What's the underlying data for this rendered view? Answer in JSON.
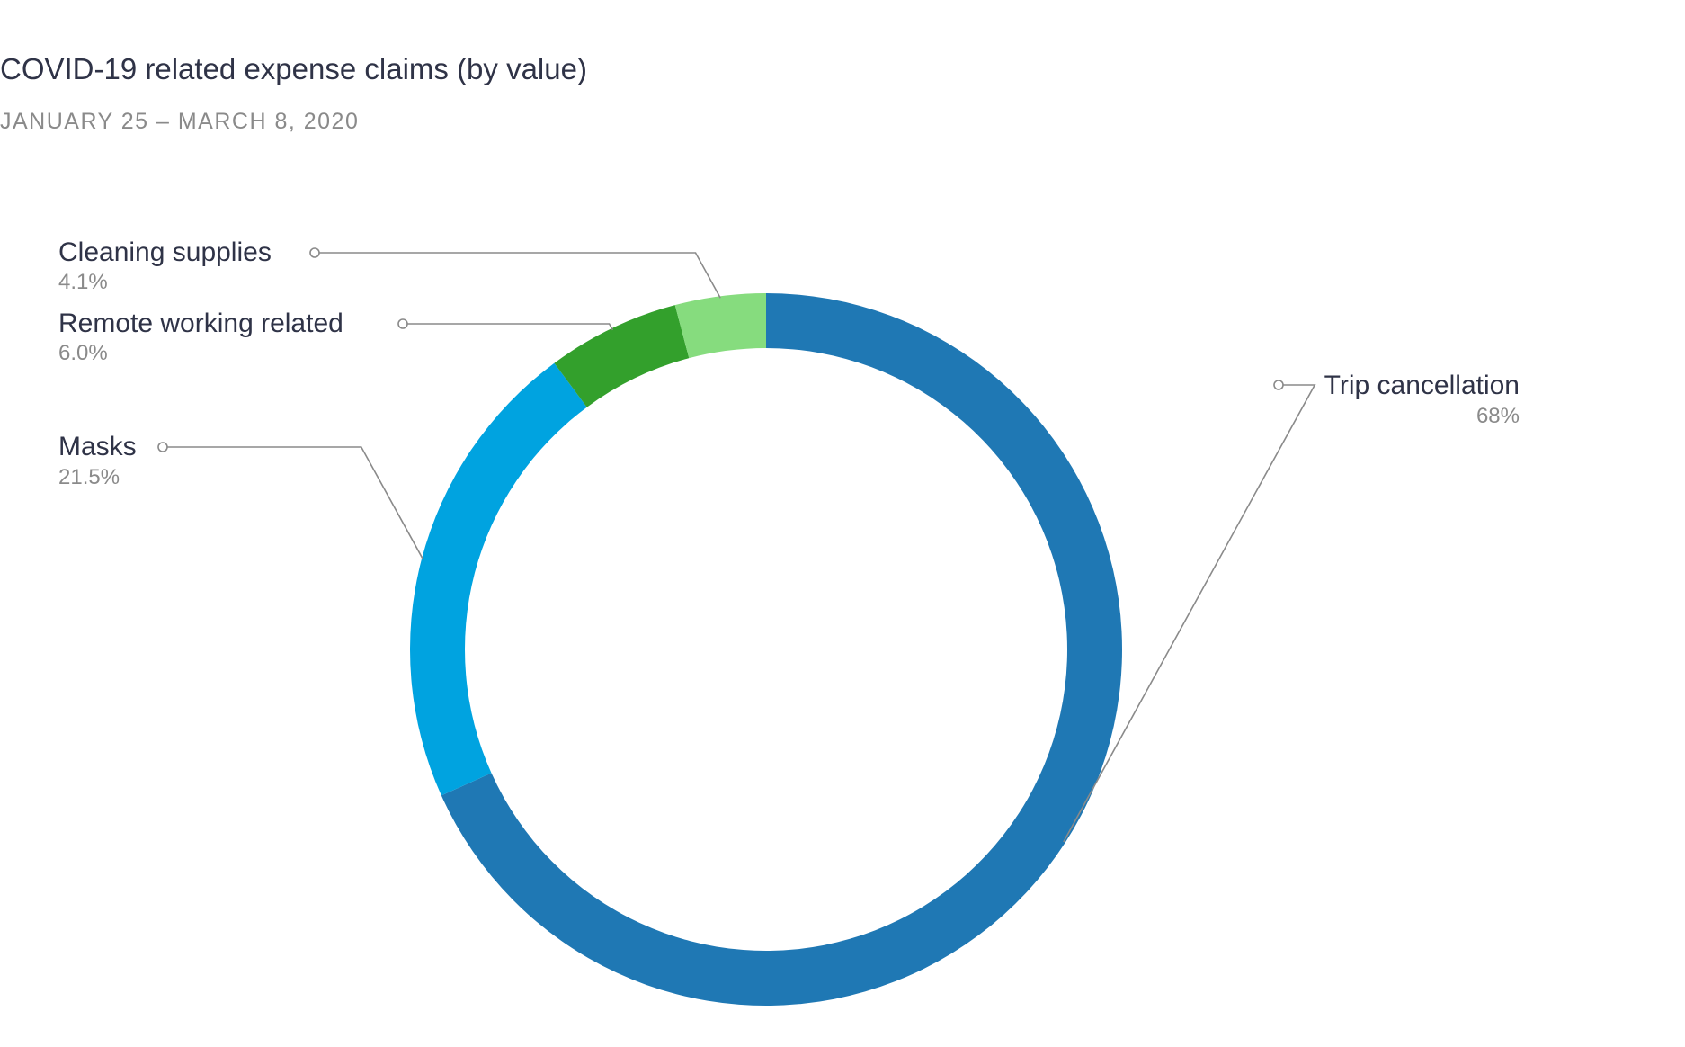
{
  "chart_data": {
    "type": "pie",
    "subtype": "donut",
    "title": "COVID-19 related expense claims (by value)",
    "subtitle": "JANUARY 25 – MARCH 8, 2020",
    "categories": [
      "Trip cancellation",
      "Masks",
      "Remote working related",
      "Cleaning supplies"
    ],
    "values": [
      68,
      21.5,
      6.0,
      4.1
    ],
    "value_labels": [
      "68%",
      "21.5%",
      "6.0%",
      "4.1%"
    ],
    "colors": [
      "#1f78b4",
      "#00a3e0",
      "#33a02c",
      "#86dc7e"
    ],
    "start": "top",
    "direction": "clockwise",
    "legend": "none"
  }
}
